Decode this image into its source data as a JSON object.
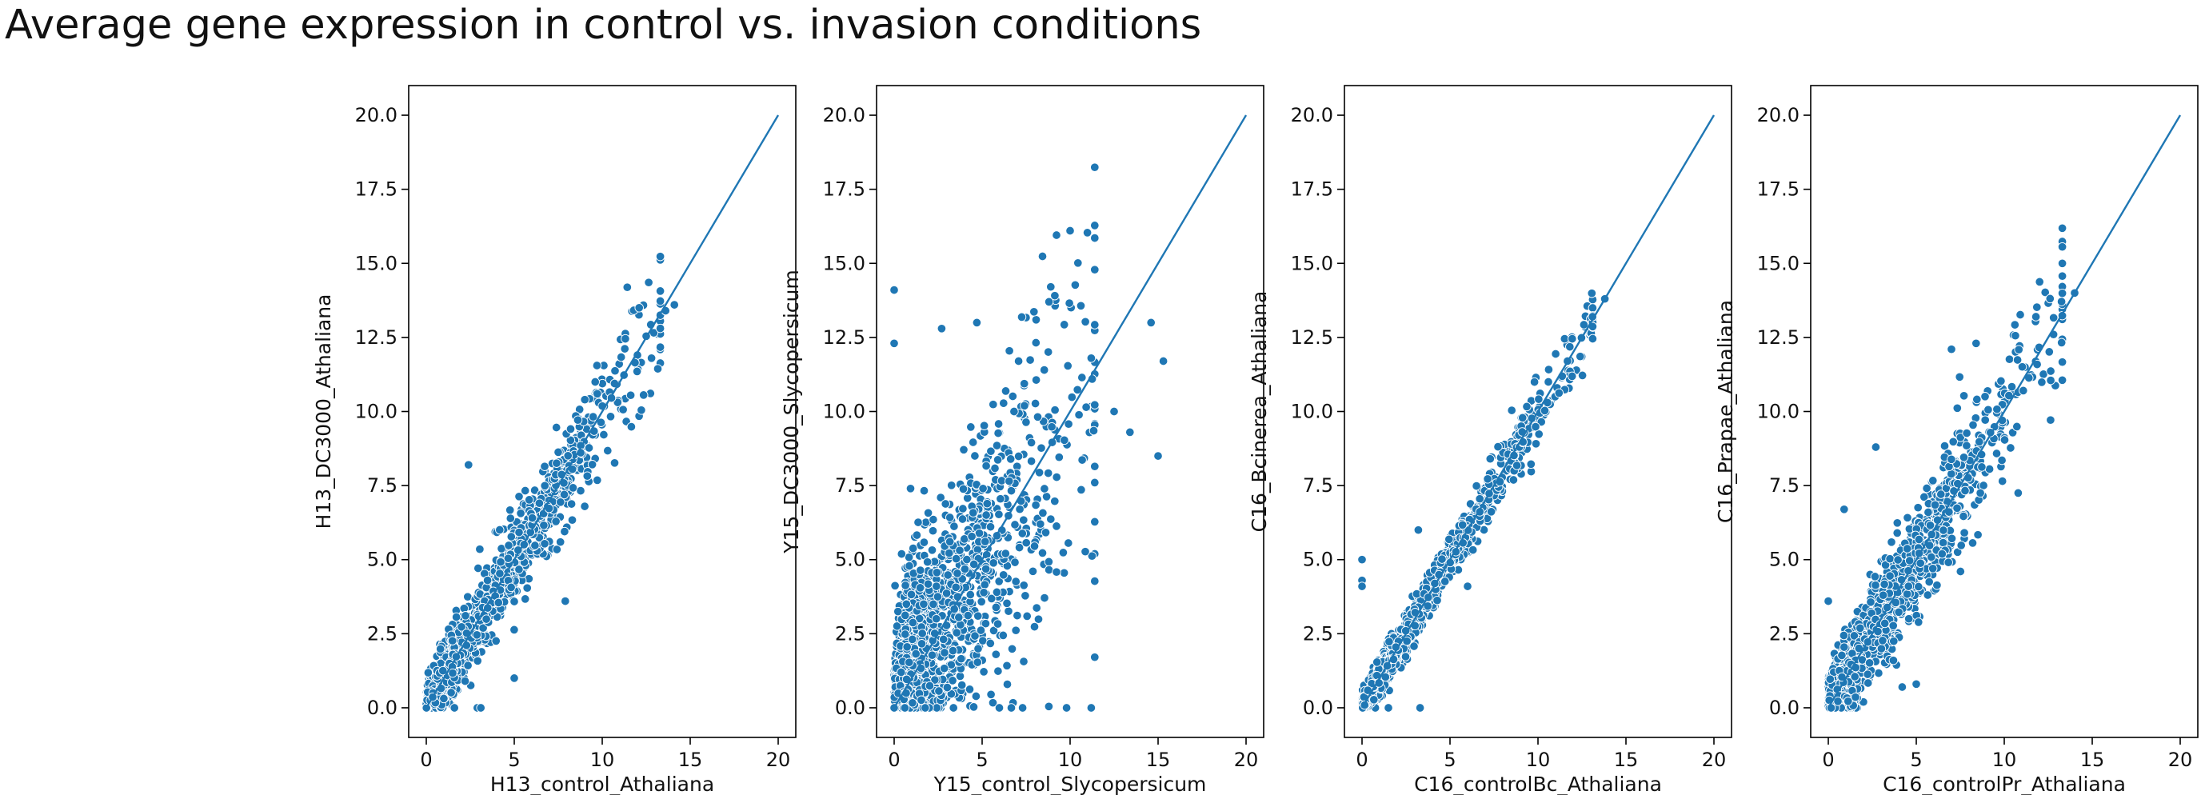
{
  "figure": {
    "title": "Average gene expression in control vs. invasion conditions",
    "colors": {
      "points": "#1f77b4",
      "point_edge": "#ffffff",
      "line": "#1f77b4",
      "axes": "#000000"
    }
  },
  "chart_data": [
    {
      "type": "scatter",
      "xlabel": "H13_control_Athaliana",
      "ylabel": "H13_DC3000_Athaliana",
      "xlim": [
        -1,
        21
      ],
      "ylim": [
        -1,
        21
      ],
      "xticks": [
        0,
        5,
        10,
        15,
        20
      ],
      "yticks": [
        0.0,
        2.5,
        5.0,
        7.5,
        10.0,
        12.5,
        15.0,
        17.5,
        20.0
      ],
      "grid": false,
      "identity_line": [
        [
          0,
          0
        ],
        [
          20,
          20
        ]
      ],
      "spread": 0.85,
      "max_x": 14,
      "outliers": [
        [
          12.1,
          13.5
        ],
        [
          13.6,
          13.4
        ],
        [
          14.1,
          13.6
        ],
        [
          7.9,
          3.6
        ],
        [
          2.4,
          8.2
        ],
        [
          1.6,
          0.0
        ],
        [
          2.9,
          0.0
        ],
        [
          3.1,
          0.0
        ],
        [
          5.0,
          1.0
        ],
        [
          9.6,
          11.0
        ],
        [
          12.8,
          11.8
        ]
      ]
    },
    {
      "type": "scatter",
      "xlabel": "Y15_control_Slycopersicum",
      "ylabel": "Y15_DC3000_Slycopersicum",
      "xlim": [
        -1,
        21
      ],
      "ylim": [
        -1,
        21
      ],
      "xticks": [
        0,
        5,
        10,
        15,
        20
      ],
      "yticks": [
        0.0,
        2.5,
        5.0,
        7.5,
        10.0,
        12.5,
        15.0,
        17.5,
        20.0
      ],
      "grid": false,
      "identity_line": [
        [
          0,
          0
        ],
        [
          20,
          20
        ]
      ],
      "spread": 2.8,
      "max_x": 12,
      "outliers": [
        [
          10.0,
          16.1
        ],
        [
          0.0,
          14.1
        ],
        [
          0.0,
          12.3
        ],
        [
          2.7,
          12.8
        ],
        [
          4.7,
          13.0
        ],
        [
          8.8,
          13.7
        ],
        [
          11.2,
          11.8
        ],
        [
          12.5,
          10.0
        ],
        [
          13.4,
          9.3
        ],
        [
          15.3,
          11.7
        ],
        [
          14.6,
          13.0
        ],
        [
          15.0,
          8.5
        ],
        [
          9.8,
          0.0
        ],
        [
          11.2,
          0.0
        ],
        [
          7.3,
          0.0
        ],
        [
          0.0,
          0.0
        ]
      ]
    },
    {
      "type": "scatter",
      "xlabel": "C16_controlBc_Athaliana",
      "ylabel": "C16_Bcinerea_Athaliana",
      "xlim": [
        -1,
        21
      ],
      "ylim": [
        -1,
        21
      ],
      "xticks": [
        0,
        5,
        10,
        15,
        20
      ],
      "yticks": [
        0.0,
        2.5,
        5.0,
        7.5,
        10.0,
        12.5,
        15.0,
        17.5,
        20.0
      ],
      "grid": false,
      "identity_line": [
        [
          0,
          0
        ],
        [
          20,
          20
        ]
      ],
      "spread": 0.45,
      "max_x": 13.8,
      "outliers": [
        [
          0.0,
          5.0
        ],
        [
          0.0,
          4.3
        ],
        [
          0.0,
          4.1
        ],
        [
          3.3,
          0.0
        ],
        [
          13.8,
          13.8
        ],
        [
          13.1,
          13.2
        ],
        [
          6.0,
          4.1
        ],
        [
          3.2,
          6.0
        ],
        [
          1.5,
          0.0
        ]
      ]
    },
    {
      "type": "scatter",
      "xlabel": "C16_controlPr_Athaliana",
      "ylabel": "C16_Prapae_Athaliana",
      "xlim": [
        -1,
        21
      ],
      "ylim": [
        -1,
        21
      ],
      "xticks": [
        0,
        5,
        10,
        15,
        20
      ],
      "yticks": [
        0.0,
        2.5,
        5.0,
        7.5,
        10.0,
        12.5,
        15.0,
        17.5,
        20.0
      ],
      "grid": false,
      "identity_line": [
        [
          0,
          0
        ],
        [
          20,
          20
        ]
      ],
      "spread": 1.1,
      "max_x": 14,
      "outliers": [
        [
          14.0,
          14.0
        ],
        [
          11.8,
          13.2
        ],
        [
          12.8,
          12.6
        ],
        [
          7.0,
          12.1
        ],
        [
          8.4,
          12.3
        ],
        [
          2.7,
          8.8
        ],
        [
          0.9,
          6.7
        ],
        [
          4.2,
          0.7
        ],
        [
          5.0,
          0.8
        ],
        [
          3.7,
          1.6
        ],
        [
          0.0,
          3.6
        ]
      ]
    }
  ]
}
